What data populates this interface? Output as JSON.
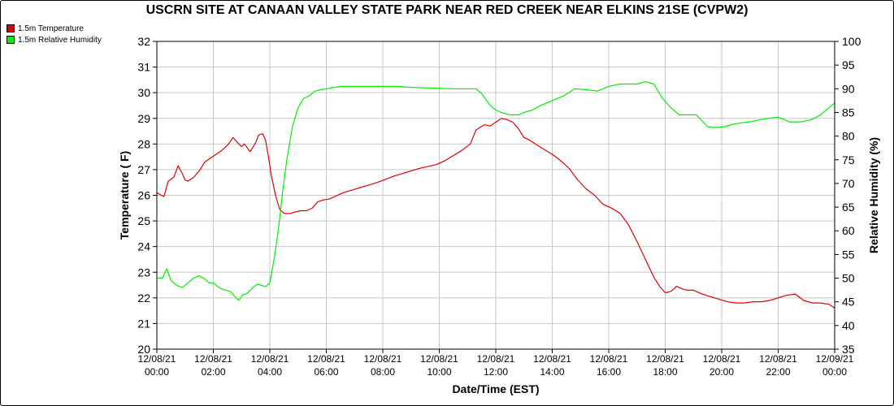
{
  "chart_data": {
    "type": "line",
    "title": "USCRN SITE AT CANAAN VALLEY STATE PARK NEAR RED CREEK NEAR ELKINS 21SE (CVPW2)",
    "xlabel": "Date/Time (EST)",
    "ylabel": "Temperature ( F)",
    "y2label": "Relative Humidity (%)",
    "ylim": [
      20,
      32
    ],
    "y2lim": [
      35,
      100
    ],
    "xlim": [
      0,
      24
    ],
    "grid": true,
    "legend_position": "top-left",
    "yticks": [
      20,
      21,
      22,
      23,
      24,
      25,
      26,
      27,
      28,
      29,
      30,
      31,
      32
    ],
    "y2ticks": [
      35,
      40,
      45,
      50,
      55,
      60,
      65,
      70,
      75,
      80,
      85,
      90,
      95,
      100
    ],
    "xticks": [
      {
        "date": "12/08/21",
        "time": "00:00"
      },
      {
        "date": "12/08/21",
        "time": "02:00"
      },
      {
        "date": "12/08/21",
        "time": "04:00"
      },
      {
        "date": "12/08/21",
        "time": "06:00"
      },
      {
        "date": "12/08/21",
        "time": "08:00"
      },
      {
        "date": "12/08/21",
        "time": "10:00"
      },
      {
        "date": "12/08/21",
        "time": "12:00"
      },
      {
        "date": "12/08/21",
        "time": "14:00"
      },
      {
        "date": "12/08/21",
        "time": "16:00"
      },
      {
        "date": "12/08/21",
        "time": "18:00"
      },
      {
        "date": "12/08/21",
        "time": "20:00"
      },
      {
        "date": "12/08/21",
        "time": "22:00"
      },
      {
        "date": "12/09/21",
        "time": "00:00"
      }
    ],
    "series": [
      {
        "name": "1.5m Temperature",
        "color": "#e00000",
        "axis": "left",
        "x": [
          0,
          0.25,
          0.4,
          0.6,
          0.75,
          0.9,
          1.0,
          1.1,
          1.3,
          1.5,
          1.7,
          1.9,
          2.1,
          2.3,
          2.5,
          2.7,
          2.9,
          3.0,
          3.1,
          3.3,
          3.5,
          3.6,
          3.75,
          3.85,
          3.95,
          4.05,
          4.2,
          4.35,
          4.5,
          4.6,
          4.75,
          4.9,
          5.1,
          5.3,
          5.5,
          5.7,
          5.9,
          6.1,
          6.3,
          6.6,
          6.9,
          7.2,
          7.5,
          7.8,
          8.1,
          8.4,
          8.7,
          9.0,
          9.3,
          9.6,
          9.9,
          10.2,
          10.5,
          10.8,
          11.1,
          11.3,
          11.6,
          11.8,
          12.0,
          12.2,
          12.4,
          12.6,
          12.8,
          13.0,
          13.2,
          13.4,
          13.7,
          14.0,
          14.3,
          14.6,
          14.9,
          15.2,
          15.5,
          15.8,
          16.1,
          16.4,
          16.7,
          17.0,
          17.3,
          17.6,
          17.8,
          18.0,
          18.2,
          18.4,
          18.6,
          18.8,
          19.0,
          19.3,
          19.6,
          19.9,
          20.2,
          20.5,
          20.8,
          21.1,
          21.4,
          21.7,
          22.0,
          22.3,
          22.6,
          22.9,
          23.2,
          23.5,
          23.8,
          24.0
        ],
        "y": [
          26.1,
          25.95,
          26.55,
          26.7,
          27.15,
          26.85,
          26.6,
          26.55,
          26.7,
          26.95,
          27.3,
          27.45,
          27.6,
          27.75,
          27.95,
          28.25,
          28.0,
          27.9,
          28.0,
          27.7,
          28.05,
          28.35,
          28.4,
          28.15,
          27.5,
          26.8,
          26.0,
          25.45,
          25.3,
          25.28,
          25.3,
          25.35,
          25.4,
          25.4,
          25.5,
          25.75,
          25.82,
          25.85,
          25.95,
          26.1,
          26.2,
          26.3,
          26.4,
          26.5,
          26.62,
          26.75,
          26.85,
          26.95,
          27.05,
          27.12,
          27.2,
          27.35,
          27.55,
          27.75,
          28.0,
          28.55,
          28.75,
          28.7,
          28.85,
          29.0,
          28.95,
          28.85,
          28.6,
          28.25,
          28.15,
          28.0,
          27.8,
          27.6,
          27.35,
          27.05,
          26.6,
          26.25,
          26.0,
          25.65,
          25.5,
          25.3,
          24.85,
          24.2,
          23.5,
          22.8,
          22.45,
          22.2,
          22.25,
          22.45,
          22.35,
          22.3,
          22.3,
          22.15,
          22.05,
          21.95,
          21.85,
          21.8,
          21.8,
          21.85,
          21.85,
          21.9,
          22.0,
          22.1,
          22.15,
          21.9,
          21.8,
          21.8,
          21.75,
          21.6
        ]
      },
      {
        "name": "1.5m Relative Humidity",
        "color": "#00ee00",
        "axis": "right",
        "x": [
          0,
          0.2,
          0.35,
          0.5,
          0.7,
          0.9,
          1.1,
          1.3,
          1.5,
          1.7,
          1.85,
          2.0,
          2.2,
          2.4,
          2.6,
          2.75,
          2.9,
          3.05,
          3.2,
          3.4,
          3.55,
          3.7,
          3.85,
          4.0,
          4.15,
          4.3,
          4.45,
          4.6,
          4.8,
          5.0,
          5.2,
          5.4,
          5.6,
          5.8,
          6.0,
          6.5,
          7.0,
          7.5,
          8.0,
          8.5,
          9.0,
          9.5,
          10.0,
          10.5,
          11.0,
          11.3,
          11.5,
          11.8,
          12.0,
          12.2,
          12.5,
          12.8,
          13.0,
          13.3,
          13.6,
          14.0,
          14.4,
          14.8,
          15.2,
          15.6,
          16.0,
          16.4,
          16.7,
          17.0,
          17.3,
          17.6,
          17.9,
          18.2,
          18.5,
          18.8,
          19.1,
          19.5,
          19.8,
          20.1,
          20.4,
          20.7,
          21.0,
          21.4,
          21.7,
          22.0,
          22.4,
          22.8,
          23.2,
          23.5,
          23.8,
          24.0
        ],
        "y": [
          50,
          50,
          52,
          49.5,
          48.5,
          48,
          49,
          50,
          50.5,
          49.8,
          49,
          49,
          48,
          47.5,
          47.2,
          46.2,
          45.3,
          46.5,
          46.8,
          48,
          48.7,
          48.5,
          48.2,
          49,
          54,
          60,
          68,
          75,
          82,
          86,
          88,
          88.5,
          89.5,
          89.8,
          90,
          90.5,
          90.5,
          90.5,
          90.5,
          90.5,
          90.3,
          90.2,
          90.1,
          90,
          90,
          90,
          89,
          86.5,
          85.5,
          85,
          84.5,
          84.5,
          85,
          85.5,
          86.5,
          87.5,
          88.5,
          90,
          89.8,
          89.5,
          90.5,
          91,
          91,
          91,
          91.5,
          91,
          88,
          86,
          84.5,
          84.5,
          84.5,
          82,
          81.8,
          82,
          82.5,
          82.8,
          83,
          83.5,
          83.8,
          84,
          83,
          83,
          83.5,
          84.5,
          86,
          87
        ]
      }
    ]
  }
}
